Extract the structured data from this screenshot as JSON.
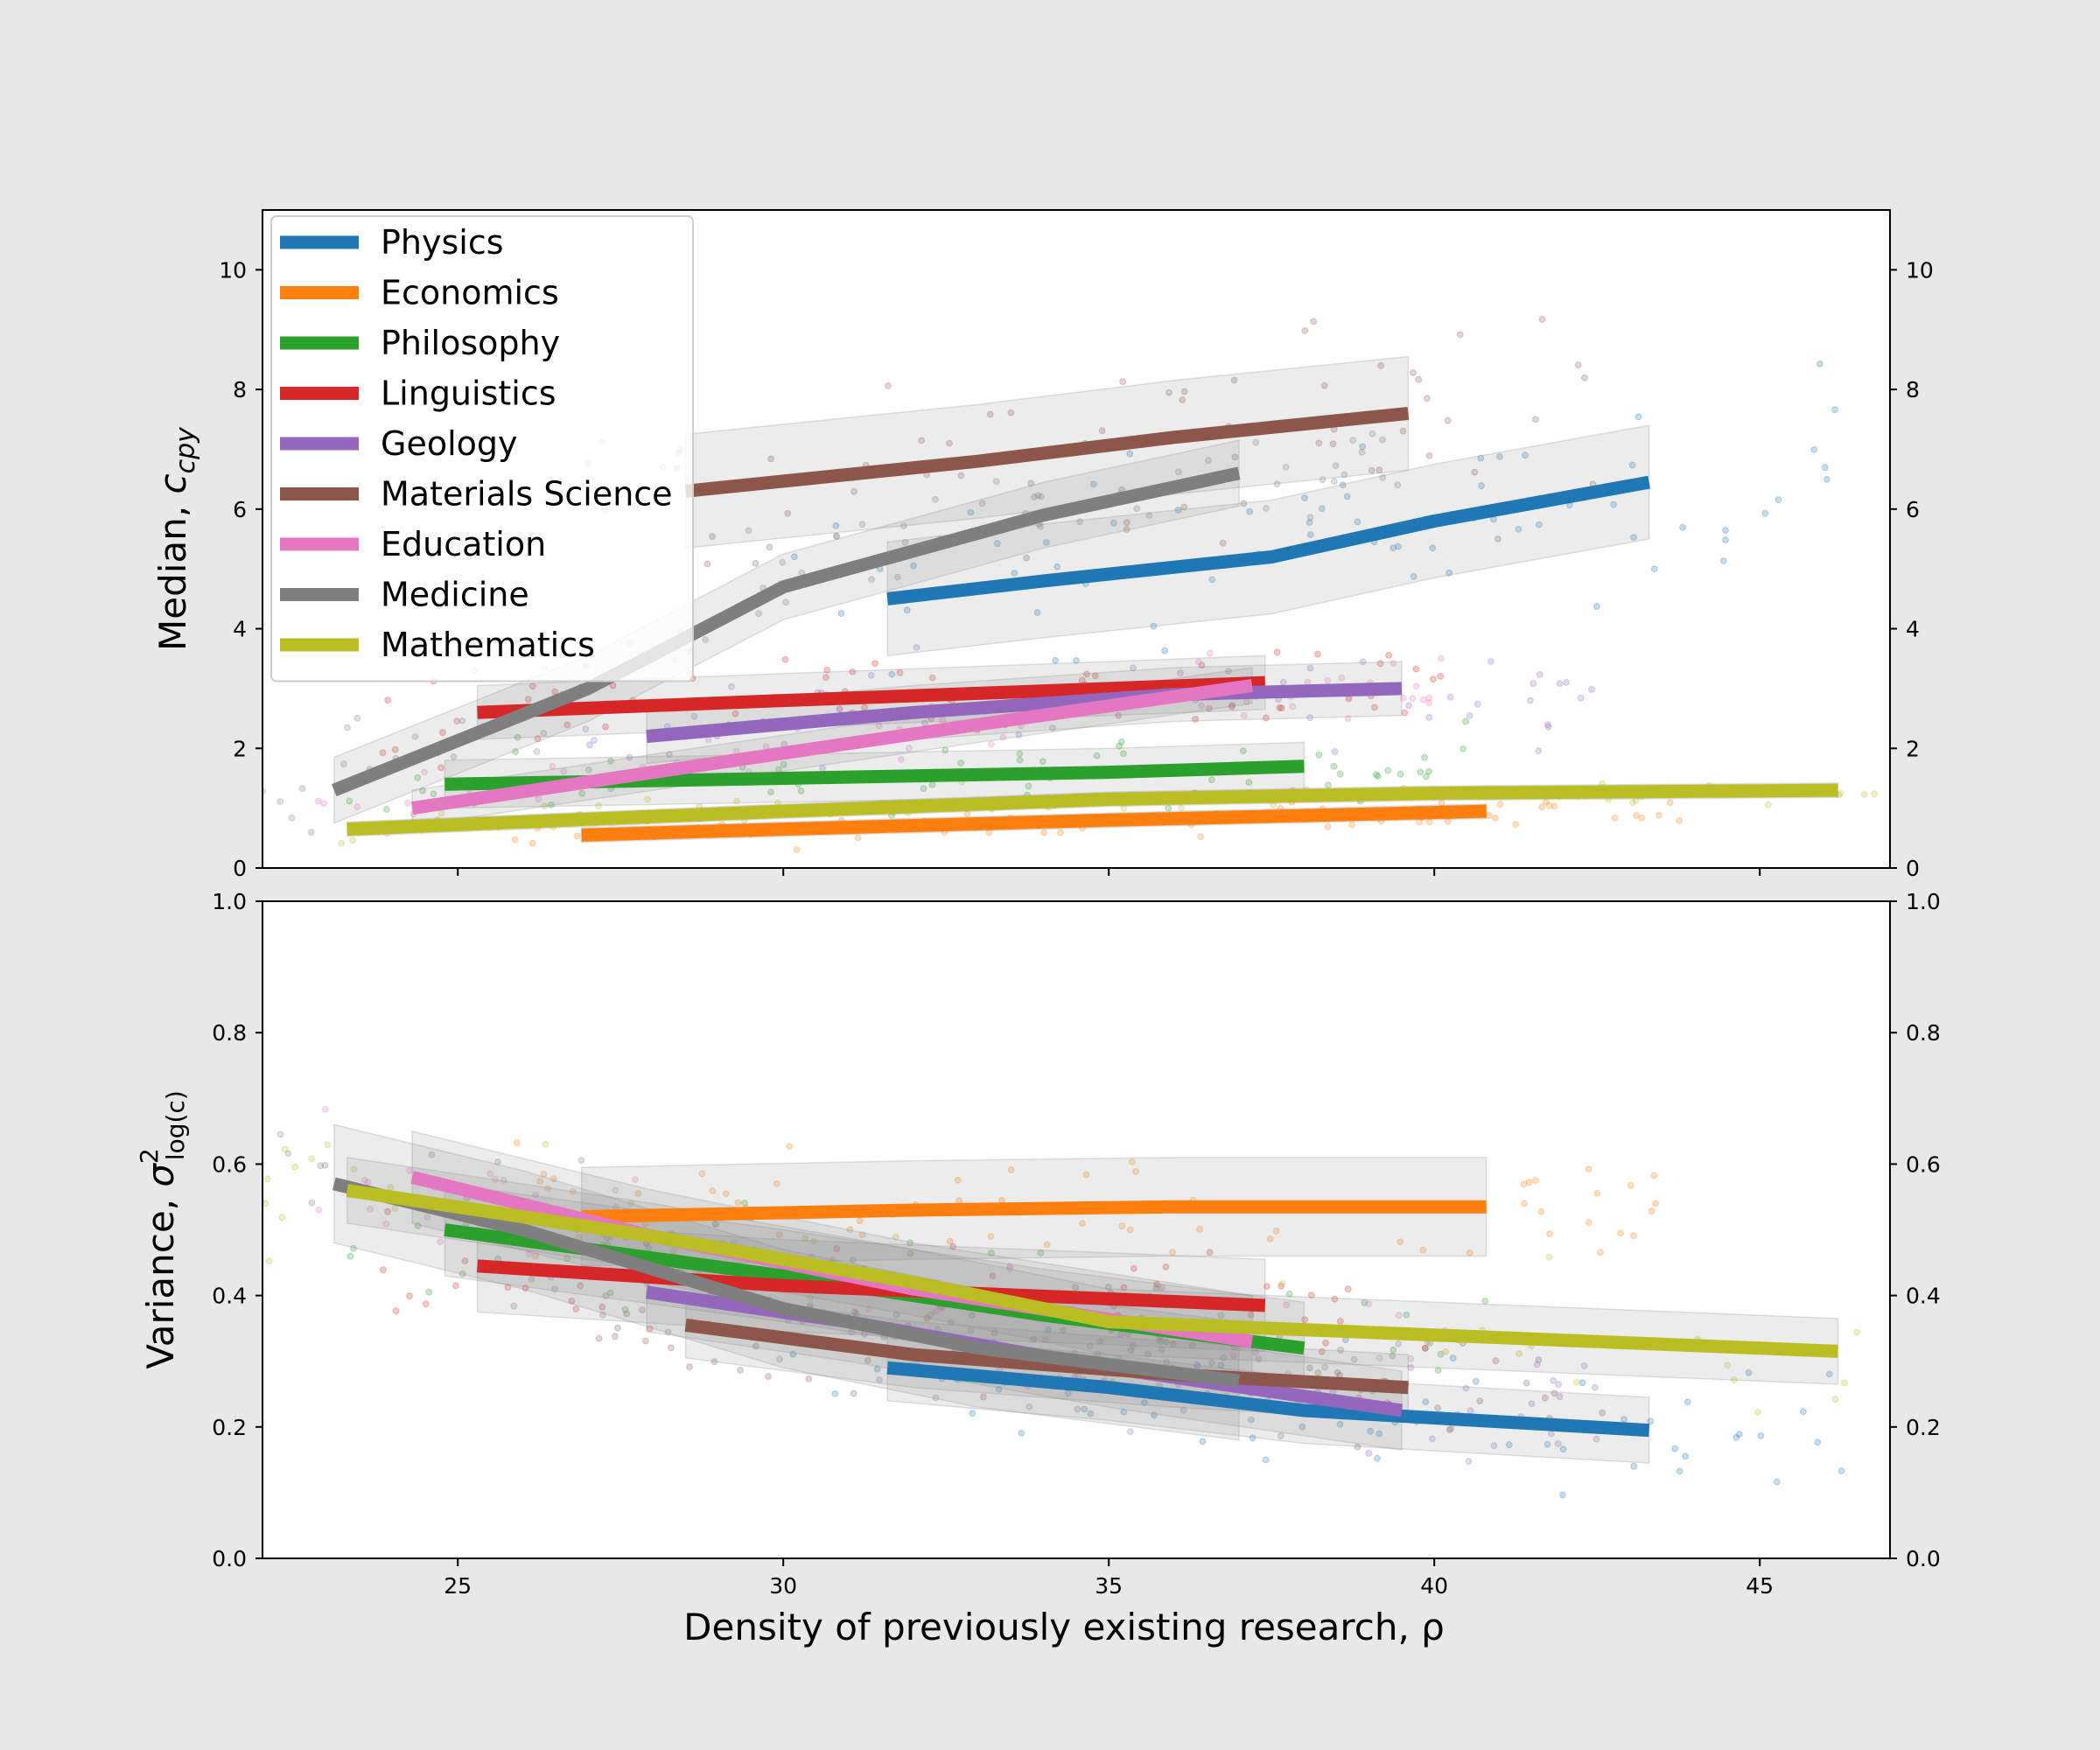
{
  "xlabel": "Density of previously existing research, ρ",
  "x_ticks": [
    25,
    30,
    35,
    40,
    45
  ],
  "xlim": [
    22,
    47
  ],
  "colors": {
    "Physics": "#1f77b4",
    "Economics": "#ff7f0e",
    "Philosophy": "#2ca02c",
    "Linguistics": "#d62728",
    "Geology": "#9467bd",
    "Materials Science": "#8c564b",
    "Education": "#e377c2",
    "Medicine": "#7f7f7f",
    "Mathematics": "#bcbd22"
  },
  "chart_data": [
    {
      "type": "line",
      "ylabel": "Median, c_cpy",
      "ylabel_main": "Median, ",
      "ylabel_var": "c",
      "ylabel_sub": "cpy",
      "ylim": [
        0,
        11
      ],
      "y_ticks": [
        0,
        2,
        4,
        6,
        8,
        10
      ],
      "legend": {
        "position": "top-left",
        "entries": [
          "Physics",
          "Economics",
          "Philosophy",
          "Linguistics",
          "Geology",
          "Materials Science",
          "Education",
          "Medicine",
          "Mathematics"
        ]
      },
      "series": [
        {
          "name": "Physics",
          "x": [
            31.6,
            34,
            37.5,
            40,
            43.3
          ],
          "y": [
            4.5,
            4.8,
            5.2,
            5.8,
            6.45
          ],
          "band": 0.95
        },
        {
          "name": "Economics",
          "x": [
            26.9,
            30,
            35,
            40.8
          ],
          "y": [
            0.55,
            0.65,
            0.8,
            0.95
          ],
          "band": 0.12
        },
        {
          "name": "Philosophy",
          "x": [
            24.8,
            30,
            35,
            38
          ],
          "y": [
            1.4,
            1.5,
            1.6,
            1.7
          ],
          "band": 0.4
        },
        {
          "name": "Linguistics",
          "x": [
            25.3,
            30,
            35,
            37.4
          ],
          "y": [
            2.6,
            2.8,
            3.0,
            3.1
          ],
          "band": 0.45
        },
        {
          "name": "Geology",
          "x": [
            27.9,
            32,
            36,
            39.5
          ],
          "y": [
            2.2,
            2.6,
            2.9,
            3.0
          ],
          "band": 0.45
        },
        {
          "name": "Materials Science",
          "x": [
            28.5,
            33,
            36,
            39.6
          ],
          "y": [
            6.3,
            6.8,
            7.2,
            7.6
          ],
          "band": 0.95
        },
        {
          "name": "Education",
          "x": [
            24.3,
            28,
            33,
            37.2
          ],
          "y": [
            1.0,
            1.6,
            2.4,
            3.05
          ],
          "band": 0.3
        },
        {
          "name": "Medicine",
          "x": [
            23.1,
            27,
            30,
            34,
            37
          ],
          "y": [
            1.3,
            3.0,
            4.7,
            5.9,
            6.6
          ],
          "band": 0.55
        },
        {
          "name": "Mathematics",
          "x": [
            23.3,
            30,
            35,
            40,
            46.2
          ],
          "y": [
            0.65,
            0.95,
            1.15,
            1.25,
            1.3
          ],
          "band": 0.12
        }
      ]
    },
    {
      "type": "line",
      "ylabel": "Variance, σ²_log(c)",
      "ylabel_main": "Variance, ",
      "ylabel_var": "σ",
      "ylabel_sup": "2",
      "ylabel_sub": "log(c)",
      "ylim": [
        0,
        1
      ],
      "y_ticks": [
        "0.0",
        "0.2",
        "0.4",
        "0.6",
        "0.8",
        "1.0"
      ],
      "series": [
        {
          "name": "Physics",
          "x": [
            31.6,
            35,
            38,
            43.3
          ],
          "y": [
            0.29,
            0.26,
            0.225,
            0.195
          ],
          "band": 0.05
        },
        {
          "name": "Economics",
          "x": [
            26.9,
            32,
            36,
            40.8
          ],
          "y": [
            0.52,
            0.53,
            0.535,
            0.535
          ],
          "band": 0.075
        },
        {
          "name": "Philosophy",
          "x": [
            24.8,
            30,
            34,
            38
          ],
          "y": [
            0.5,
            0.43,
            0.37,
            0.32
          ],
          "band": 0.07
        },
        {
          "name": "Linguistics",
          "x": [
            25.3,
            30,
            35,
            37.4
          ],
          "y": [
            0.445,
            0.415,
            0.395,
            0.385
          ],
          "band": 0.07
        },
        {
          "name": "Geology",
          "x": [
            27.9,
            31,
            35,
            39.5
          ],
          "y": [
            0.405,
            0.36,
            0.29,
            0.225
          ],
          "band": 0.06
        },
        {
          "name": "Materials Science",
          "x": [
            28.5,
            32,
            36,
            39.6
          ],
          "y": [
            0.355,
            0.31,
            0.28,
            0.26
          ],
          "band": 0.05
        },
        {
          "name": "Education",
          "x": [
            24.3,
            28,
            32,
            37.2
          ],
          "y": [
            0.58,
            0.49,
            0.41,
            0.33
          ],
          "band": 0.07
        },
        {
          "name": "Medicine",
          "x": [
            23.1,
            26,
            30,
            33,
            37
          ],
          "y": [
            0.57,
            0.5,
            0.38,
            0.32,
            0.27
          ],
          "band": 0.09
        },
        {
          "name": "Mathematics",
          "x": [
            23.3,
            28,
            32,
            35,
            40,
            46.2
          ],
          "y": [
            0.56,
            0.49,
            0.42,
            0.36,
            0.34,
            0.315
          ],
          "band": 0.05
        }
      ]
    }
  ]
}
